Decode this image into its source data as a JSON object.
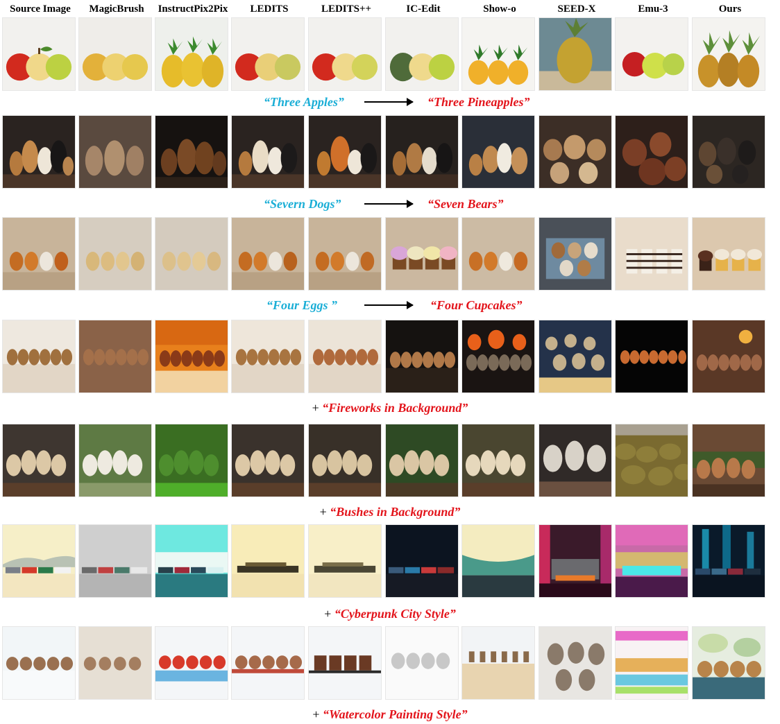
{
  "columns": [
    "Source Image",
    "MagicBrush",
    "InstructPix2Pix",
    "LEDITS",
    "LEDITS++",
    "IC-Edit",
    "Show-o",
    "SEED-X",
    "Emu-3",
    "Ours"
  ],
  "captions": {
    "r1": {
      "source": "“Three Apples”",
      "target": "“Three Pineapples”"
    },
    "r2": {
      "source": "“Severn Dogs”",
      "target": "“Seven Bears”"
    },
    "r3": {
      "source": "“Four Eggs ”",
      "target": "“Four Cupcakes”"
    },
    "r4": {
      "plus": "+",
      "target": "“Fireworks in Background”"
    },
    "r5": {
      "plus": "+",
      "target": "“Bushes in Background”"
    },
    "r6": {
      "plus": "+",
      "target": "“Cyberpunk City Style”"
    },
    "r7": {
      "plus": "+",
      "target": "“Watercolor Painting Style”"
    }
  },
  "colors": {
    "source_text": "#1aaed6",
    "target_text": "#e3141b",
    "arrow": "#000000"
  }
}
